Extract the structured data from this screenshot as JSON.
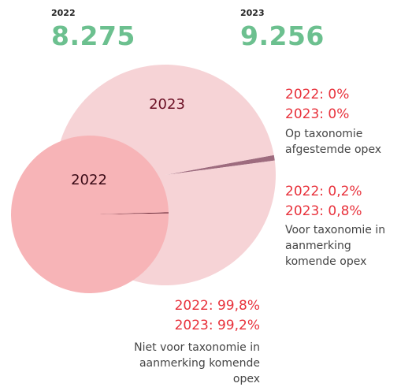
{
  "chart_data": {
    "type": "pie",
    "totals": [
      {
        "name": "2022",
        "value": 8275,
        "label": "8.275"
      },
      {
        "name": "2023",
        "value": 9256,
        "label": "9.256"
      }
    ],
    "categories": [
      "Op taxonomie afgestemde opex",
      "Voor taxonomie in aanmerking komende opex",
      "Niet voor taxonomie in aanmerking komende opex"
    ],
    "series": [
      {
        "name": "2022",
        "color": "#f7b4b7",
        "colors": [
          "#5a1a2a",
          "#5a1a2a",
          "#f7b4b7"
        ],
        "values": [
          0,
          0.2,
          99.8
        ],
        "value_labels": [
          "2022: 0%",
          "2022: 0,2%",
          "2022: 99,8%"
        ]
      },
      {
        "name": "2023",
        "color": "#f6d3d6",
        "colors": [
          "#9e6b7e",
          "#9e6b7e",
          "#f6d3d6"
        ],
        "values": [
          0,
          0.8,
          99.2
        ],
        "value_labels": [
          "2023: 0%",
          "2023: 0,8%",
          "2023: 99,2%"
        ]
      }
    ]
  }
}
